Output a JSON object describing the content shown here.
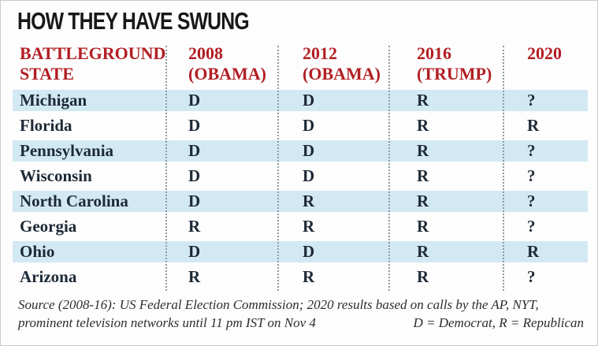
{
  "title": "HOW THEY HAVE SWUNG",
  "chart_data": {
    "type": "table",
    "title": "HOW THEY HAVE SWUNG",
    "columns": [
      "BATTLEGROUND STATE",
      "2008 (OBAMA)",
      "2012 (OBAMA)",
      "2016 (TRUMP)",
      "2020"
    ],
    "rows": [
      [
        "Michigan",
        "D",
        "D",
        "R",
        "?"
      ],
      [
        "Florida",
        "D",
        "D",
        "R",
        "R"
      ],
      [
        "Pennsylvania",
        "D",
        "D",
        "R",
        "?"
      ],
      [
        "Wisconsin",
        "D",
        "D",
        "R",
        "?"
      ],
      [
        "North Carolina",
        "D",
        "R",
        "R",
        "?"
      ],
      [
        "Georgia",
        "R",
        "R",
        "R",
        "?"
      ],
      [
        "Ohio",
        "D",
        "D",
        "R",
        "R"
      ],
      [
        "Arizona",
        "R",
        "R",
        "R",
        "?"
      ]
    ],
    "legend": "D = Democrat, R = Republican"
  },
  "header": {
    "col_state_line1": "BATTLEGROUND",
    "col_state_line2": "STATE",
    "col_2008_line1": "2008",
    "col_2008_line2": "(OBAMA)",
    "col_2012_line1": "2012",
    "col_2012_line2": "(OBAMA)",
    "col_2016_line1": "2016",
    "col_2016_line2": "(TRUMP)",
    "col_2020_line1": "2020"
  },
  "footer": {
    "source_line1": "Source (2008-16): US Federal Election Commission; 2020 results based on calls by the AP, NYT,",
    "source_line2": "prominent television networks until 11 pm IST on Nov 4",
    "legend": "D = Democrat, R = Republican"
  },
  "colors": {
    "accent_red": "#b21e23",
    "stripe_blue": "#d2e9f3",
    "text_dark": "#1d2936"
  }
}
